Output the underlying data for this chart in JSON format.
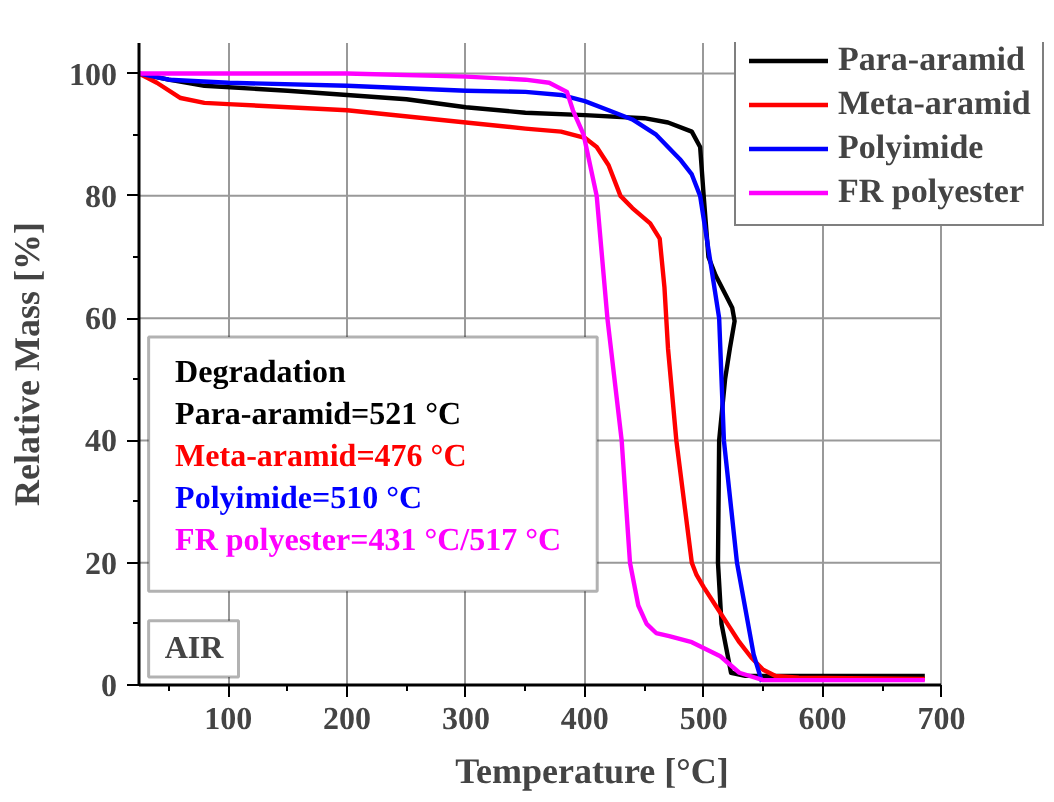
{
  "chart_data": {
    "type": "line",
    "xlabel": "Temperature [°C]",
    "ylabel": "Relative Mass [%]",
    "xlim": [
      25,
      700
    ],
    "ylim": [
      0,
      105
    ],
    "xticks": [
      100,
      200,
      300,
      400,
      500,
      600,
      700
    ],
    "yticks": [
      0,
      20,
      40,
      60,
      80,
      100
    ],
    "grid": true,
    "legend": "top right",
    "line_style": "solid",
    "marker": "none",
    "annotations": [
      "Degradation",
      "Para-aramid=521 °C",
      "Meta-aramid=476 °C",
      "Polyimide=510 °C",
      "FR polyester=431 °C/517 °C",
      "AIR"
    ],
    "series": [
      {
        "name": "Para-aramid",
        "color": "#000000",
        "x": [
          25,
          50,
          80,
          150,
          200,
          250,
          300,
          350,
          400,
          450,
          470,
          490,
          497,
          500,
          504,
          510,
          518,
          524,
          526,
          522,
          518,
          513,
          512,
          515,
          523,
          535,
          600,
          686
        ],
        "values": [
          100,
          99,
          98,
          97.2,
          96.5,
          95.8,
          94.5,
          93.6,
          93.2,
          92.7,
          92,
          90.5,
          88,
          80,
          70,
          67,
          64,
          61.7,
          59.5,
          55,
          50,
          40,
          20,
          10,
          2,
          1.5,
          1.5,
          1.5
        ]
      },
      {
        "name": "Meta-aramid",
        "color": "#ff0000",
        "x": [
          25,
          40,
          60,
          80,
          100,
          200,
          300,
          350,
          380,
          400,
          410,
          420,
          430,
          440,
          455,
          463,
          467,
          470,
          477,
          490,
          494,
          500,
          510,
          520,
          530,
          540,
          550,
          560,
          580,
          686
        ],
        "values": [
          100,
          98.5,
          96,
          95.2,
          95,
          94,
          92,
          91,
          90.5,
          89.5,
          88,
          85,
          80,
          78,
          75.5,
          73,
          65,
          55,
          40,
          20,
          18,
          16,
          13,
          10,
          7,
          4.5,
          2.5,
          1.5,
          1.2,
          1
        ]
      },
      {
        "name": "Polyimide",
        "color": "#0000ff",
        "x": [
          25,
          50,
          100,
          200,
          300,
          350,
          380,
          400,
          420,
          440,
          460,
          480,
          490,
          497,
          505,
          513,
          517,
          528,
          542,
          549
        ],
        "values": [
          100,
          99,
          98.5,
          98,
          97.2,
          97,
          96.5,
          95.5,
          94,
          92.5,
          90,
          86,
          83.5,
          80,
          70,
          60,
          40,
          20,
          5,
          0.5
        ]
      },
      {
        "name": "FR polyester",
        "color": "#ff00ff",
        "x": [
          25,
          100,
          200,
          300,
          350,
          370,
          385,
          390,
          399,
          410,
          419,
          431,
          438,
          445,
          452,
          460,
          471,
          490,
          514,
          530,
          550,
          686
        ],
        "values": [
          100,
          100,
          100,
          99.5,
          99,
          98.5,
          97,
          94,
          90,
          80,
          60,
          40,
          20,
          13,
          10,
          8.5,
          8,
          7,
          4.7,
          2,
          0.8,
          0.8
        ]
      }
    ]
  }
}
